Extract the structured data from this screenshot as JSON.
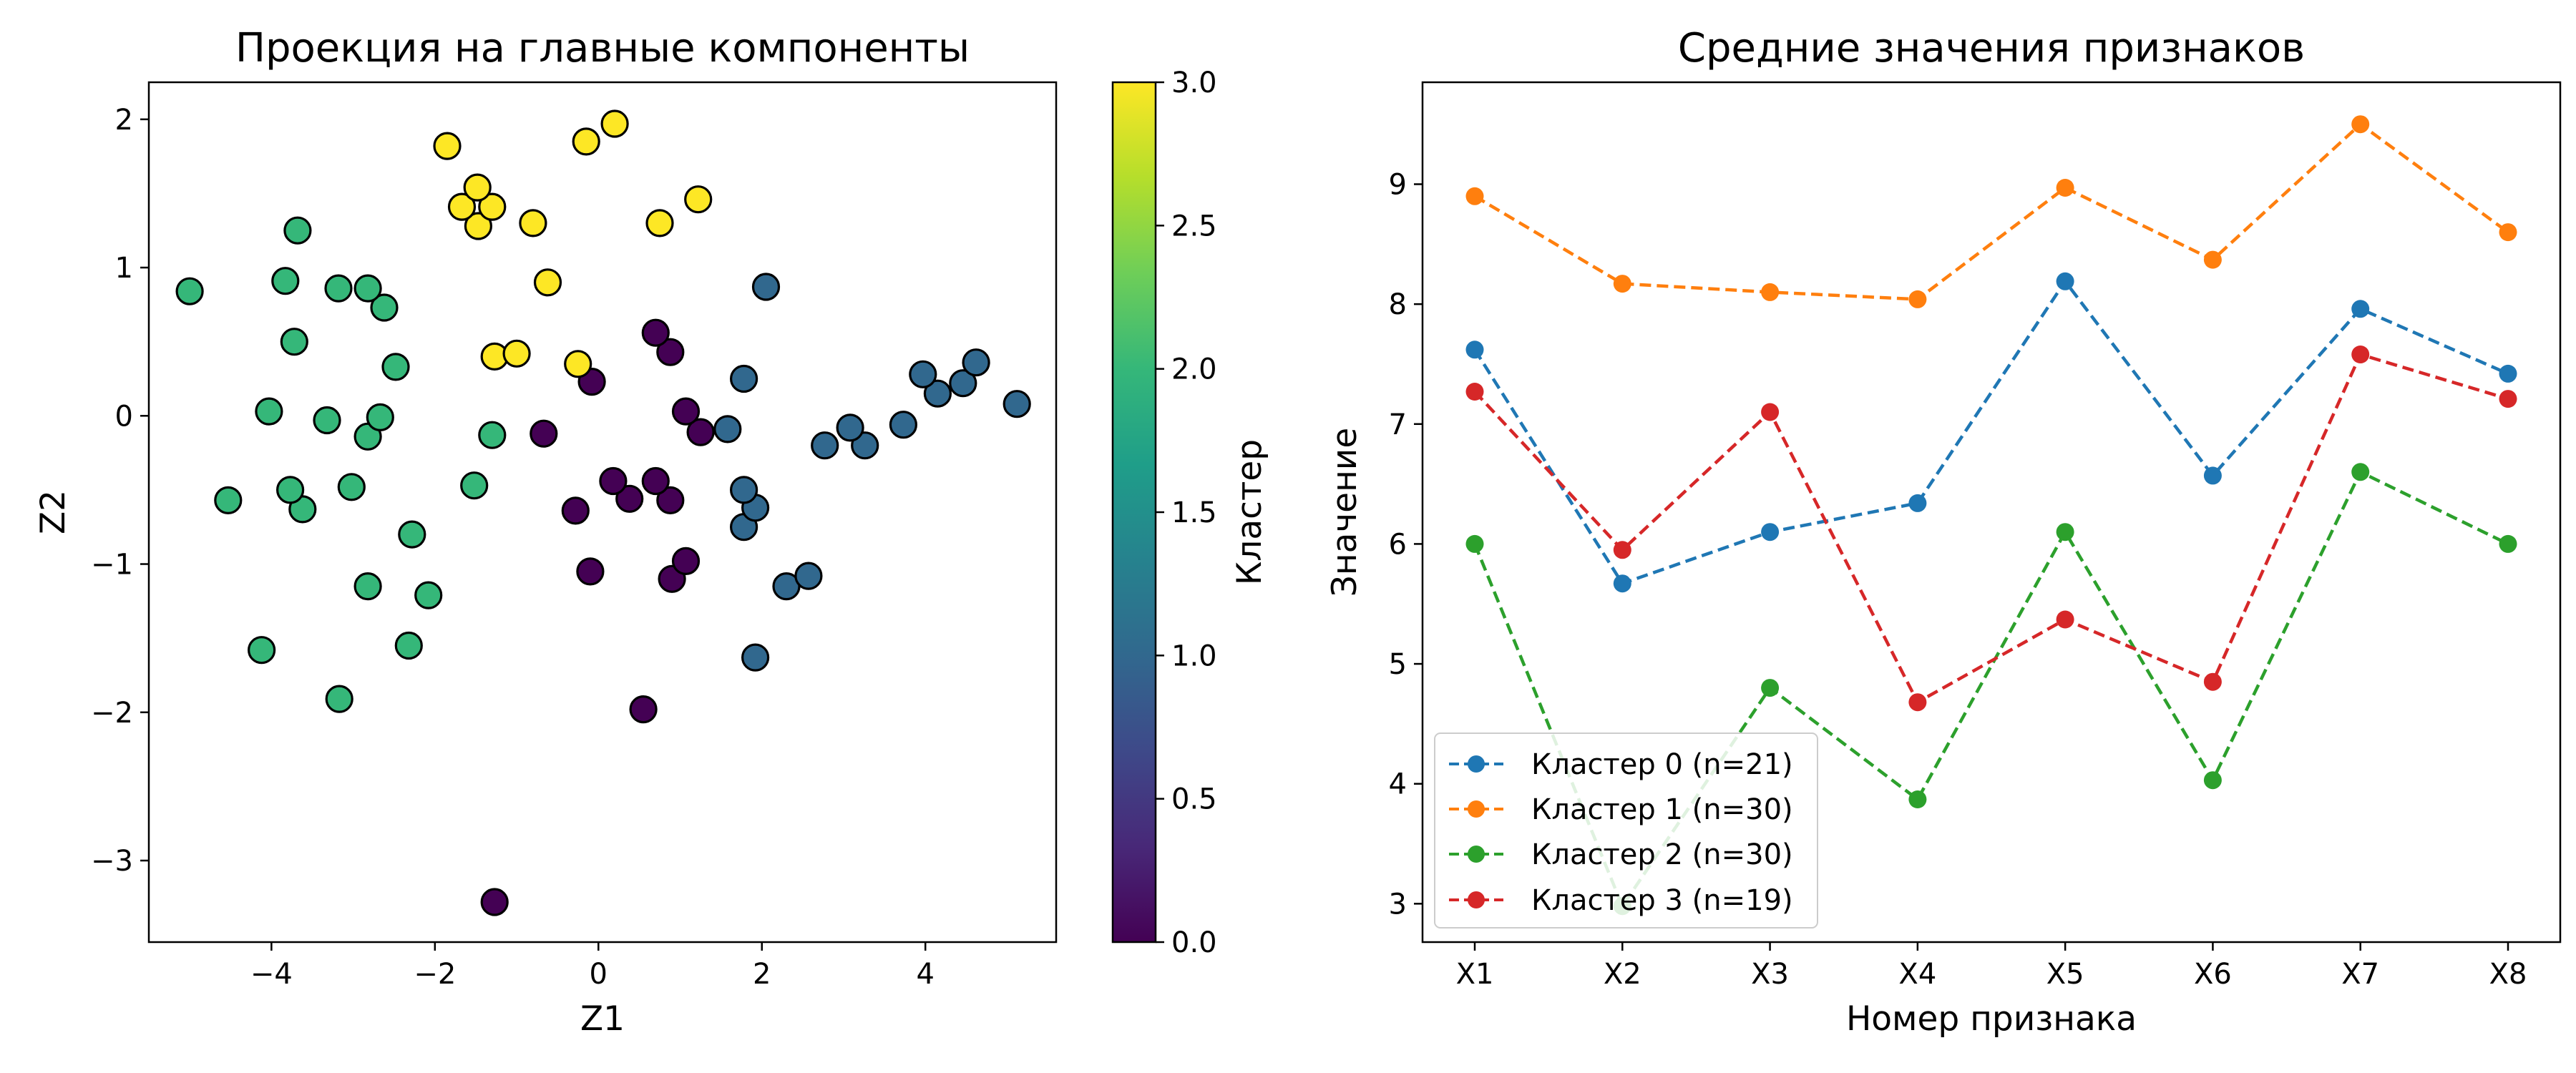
{
  "chart_data": [
    {
      "type": "scatter",
      "title": "Проекция на главные компоненты",
      "xlabel": "Z1",
      "ylabel": "Z2",
      "xlim": [
        -5.5,
        5.6
      ],
      "ylim": [
        -3.55,
        2.25
      ],
      "xticks": [
        -4,
        -2,
        0,
        2,
        4
      ],
      "xtick_labels": [
        "−4",
        "−2",
        "0",
        "2",
        "4"
      ],
      "yticks": [
        -3,
        -2,
        -1,
        0,
        1,
        2
      ],
      "ytick_labels": [
        "−3",
        "−2",
        "−1",
        "0",
        "1",
        "2"
      ],
      "grid": false,
      "colorbar": {
        "label": "Кластер",
        "colormap": "viridis",
        "range": [
          0,
          3
        ],
        "ticks": [
          0,
          0.5,
          1,
          1.5,
          2,
          2.5,
          3
        ],
        "tick_labels": [
          "0.0",
          "0.5",
          "1.0",
          "1.5",
          "2.0",
          "2.5",
          "3.0"
        ]
      },
      "cluster_colors": [
        "#440154",
        "#31688e",
        "#35b779",
        "#fde725"
      ],
      "points": [
        {
          "x": -1.27,
          "y": -3.28,
          "c": 0
        },
        {
          "x": 0.55,
          "y": -1.98,
          "c": 0
        },
        {
          "x": -0.1,
          "y": -1.05,
          "c": 0
        },
        {
          "x": 0.9,
          "y": -1.1,
          "c": 0
        },
        {
          "x": 1.07,
          "y": -0.98,
          "c": 0
        },
        {
          "x": -0.28,
          "y": -0.64,
          "c": 0
        },
        {
          "x": 0.38,
          "y": -0.56,
          "c": 0
        },
        {
          "x": 0.88,
          "y": -0.57,
          "c": 0
        },
        {
          "x": 0.18,
          "y": -0.44,
          "c": 0
        },
        {
          "x": 0.7,
          "y": -0.44,
          "c": 0
        },
        {
          "x": -0.67,
          "y": -0.12,
          "c": 0
        },
        {
          "x": 1.25,
          "y": -0.11,
          "c": 0
        },
        {
          "x": 1.07,
          "y": 0.03,
          "c": 0
        },
        {
          "x": -0.08,
          "y": 0.23,
          "c": 0
        },
        {
          "x": 0.88,
          "y": 0.43,
          "c": 0
        },
        {
          "x": 0.7,
          "y": 0.56,
          "c": 0
        },
        {
          "x": 1.92,
          "y": -1.63,
          "c": 1
        },
        {
          "x": 2.3,
          "y": -1.15,
          "c": 1
        },
        {
          "x": 2.57,
          "y": -1.08,
          "c": 1
        },
        {
          "x": 1.78,
          "y": -0.75,
          "c": 1
        },
        {
          "x": 1.92,
          "y": -0.62,
          "c": 1
        },
        {
          "x": 1.78,
          "y": -0.5,
          "c": 1
        },
        {
          "x": 2.77,
          "y": -0.2,
          "c": 1
        },
        {
          "x": 3.26,
          "y": -0.2,
          "c": 1
        },
        {
          "x": 1.58,
          "y": -0.09,
          "c": 1
        },
        {
          "x": 3.08,
          "y": -0.08,
          "c": 1
        },
        {
          "x": 3.73,
          "y": -0.06,
          "c": 1
        },
        {
          "x": 5.12,
          "y": 0.08,
          "c": 1
        },
        {
          "x": 4.15,
          "y": 0.15,
          "c": 1
        },
        {
          "x": 4.46,
          "y": 0.22,
          "c": 1
        },
        {
          "x": 1.78,
          "y": 0.25,
          "c": 1
        },
        {
          "x": 3.97,
          "y": 0.28,
          "c": 1
        },
        {
          "x": 4.62,
          "y": 0.36,
          "c": 1
        },
        {
          "x": 2.05,
          "y": 0.87,
          "c": 1
        },
        {
          "x": -3.17,
          "y": -1.91,
          "c": 2
        },
        {
          "x": -4.12,
          "y": -1.58,
          "c": 2
        },
        {
          "x": -2.32,
          "y": -1.55,
          "c": 2
        },
        {
          "x": -2.08,
          "y": -1.21,
          "c": 2
        },
        {
          "x": -2.82,
          "y": -1.15,
          "c": 2
        },
        {
          "x": -2.28,
          "y": -0.8,
          "c": 2
        },
        {
          "x": -3.62,
          "y": -0.63,
          "c": 2
        },
        {
          "x": -4.53,
          "y": -0.57,
          "c": 2
        },
        {
          "x": -3.77,
          "y": -0.5,
          "c": 2
        },
        {
          "x": -3.02,
          "y": -0.48,
          "c": 2
        },
        {
          "x": -1.52,
          "y": -0.47,
          "c": 2
        },
        {
          "x": -2.82,
          "y": -0.14,
          "c": 2
        },
        {
          "x": -1.3,
          "y": -0.13,
          "c": 2
        },
        {
          "x": -3.32,
          "y": -0.03,
          "c": 2
        },
        {
          "x": -2.67,
          "y": -0.01,
          "c": 2
        },
        {
          "x": -4.03,
          "y": 0.03,
          "c": 2
        },
        {
          "x": -2.48,
          "y": 0.33,
          "c": 2
        },
        {
          "x": -3.72,
          "y": 0.5,
          "c": 2
        },
        {
          "x": -2.62,
          "y": 0.73,
          "c": 2
        },
        {
          "x": -5.0,
          "y": 0.84,
          "c": 2
        },
        {
          "x": -3.18,
          "y": 0.86,
          "c": 2
        },
        {
          "x": -2.82,
          "y": 0.86,
          "c": 2
        },
        {
          "x": -3.83,
          "y": 0.91,
          "c": 2
        },
        {
          "x": -3.68,
          "y": 1.25,
          "c": 2
        },
        {
          "x": -0.25,
          "y": 0.35,
          "c": 3
        },
        {
          "x": -1.27,
          "y": 0.4,
          "c": 3
        },
        {
          "x": -1.0,
          "y": 0.42,
          "c": 3
        },
        {
          "x": -0.62,
          "y": 0.9,
          "c": 3
        },
        {
          "x": -1.47,
          "y": 1.28,
          "c": 3
        },
        {
          "x": -0.8,
          "y": 1.3,
          "c": 3
        },
        {
          "x": 0.75,
          "y": 1.3,
          "c": 3
        },
        {
          "x": -1.67,
          "y": 1.41,
          "c": 3
        },
        {
          "x": -1.3,
          "y": 1.41,
          "c": 3
        },
        {
          "x": 1.22,
          "y": 1.46,
          "c": 3
        },
        {
          "x": -1.48,
          "y": 1.54,
          "c": 3
        },
        {
          "x": -1.85,
          "y": 1.82,
          "c": 3
        },
        {
          "x": -0.15,
          "y": 1.85,
          "c": 3
        },
        {
          "x": 0.2,
          "y": 1.97,
          "c": 3
        }
      ]
    },
    {
      "type": "line",
      "title": "Средние значения признаков",
      "xlabel": "Номер признака",
      "ylabel": "Значение",
      "categories": [
        "X1",
        "X2",
        "X3",
        "X4",
        "X5",
        "X6",
        "X7",
        "X8"
      ],
      "ylim": [
        2.68,
        9.85
      ],
      "yticks": [
        3,
        4,
        5,
        6,
        7,
        8,
        9
      ],
      "ytick_labels": [
        "3",
        "4",
        "5",
        "6",
        "7",
        "8",
        "9"
      ],
      "grid": false,
      "line_style": "dashed",
      "legend_position": "lower-left",
      "series": [
        {
          "name": "Кластер 0 (n=21)",
          "color": "#1f77b4",
          "values": [
            7.62,
            5.67,
            6.1,
            6.34,
            8.19,
            6.57,
            7.96,
            7.42
          ]
        },
        {
          "name": "Кластер 1 (n=30)",
          "color": "#ff7f0e",
          "values": [
            8.9,
            8.17,
            8.1,
            8.04,
            8.97,
            8.37,
            9.5,
            8.6
          ]
        },
        {
          "name": "Кластер 2 (n=30)",
          "color": "#2ca02c",
          "values": [
            6.0,
            2.98,
            4.8,
            3.87,
            6.1,
            4.03,
            6.6,
            6.0
          ]
        },
        {
          "name": "Кластер 3 (n=19)",
          "color": "#d62728",
          "values": [
            7.27,
            5.95,
            7.1,
            4.68,
            5.37,
            4.85,
            7.58,
            7.21
          ]
        }
      ]
    }
  ]
}
